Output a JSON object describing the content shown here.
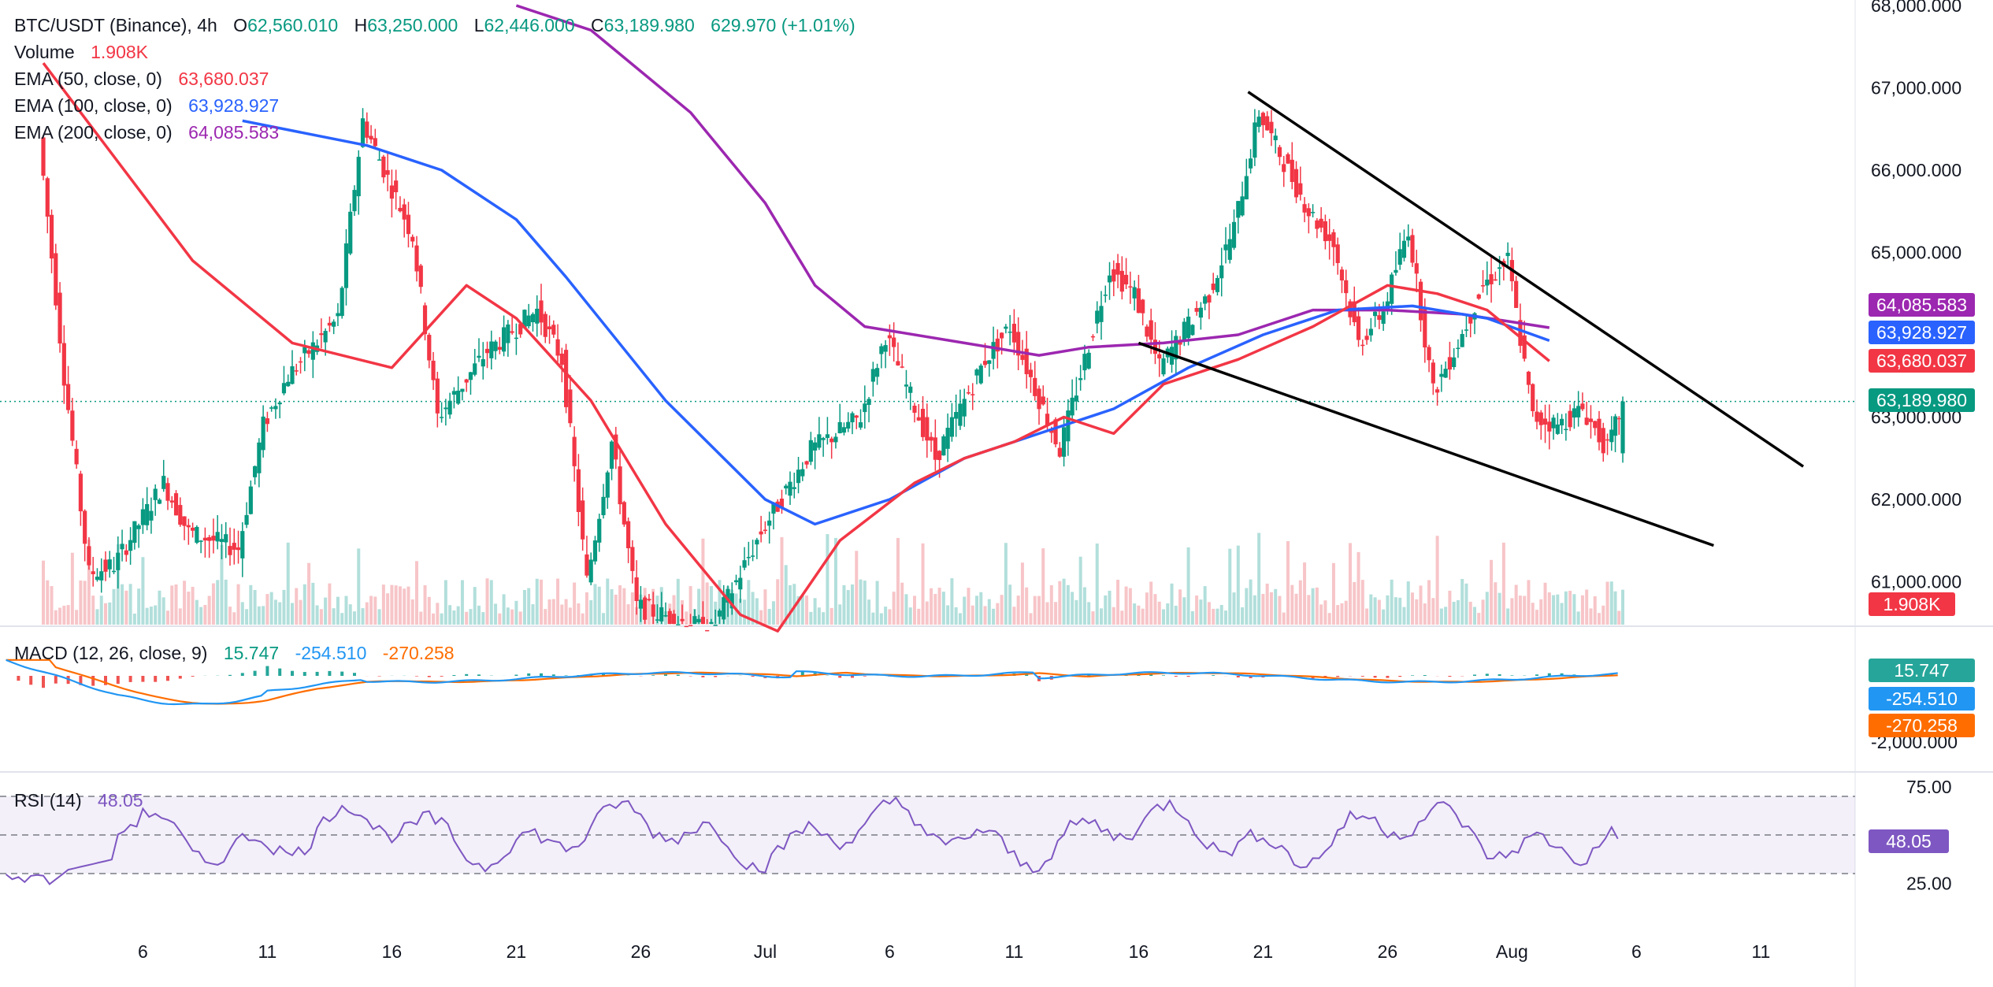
{
  "header": {
    "symbol": "BTC/USDT (Binance), 4h",
    "ohlc": [
      {
        "key": "O",
        "value": "62,560.010"
      },
      {
        "key": "H",
        "value": "63,250.000"
      },
      {
        "key": "L",
        "value": "62,446.000"
      },
      {
        "key": "C",
        "value": "63,189.980"
      }
    ],
    "change": "629.970 (+1.01%)",
    "volume_label": "Volume",
    "volume_value": "1.908K",
    "ema": [
      {
        "label": "EMA (50, close, 0)",
        "value": "63,680.037",
        "color": "#f23645"
      },
      {
        "label": "EMA (100, close, 0)",
        "value": "63,928.927",
        "color": "#2962ff"
      },
      {
        "label": "EMA (200, close, 0)",
        "value": "64,085.583",
        "color": "#9c27b0"
      }
    ]
  },
  "macd_panel": {
    "label": "MACD (12, 26, close, 9)",
    "hist": "15.747",
    "macd": "-254.510",
    "signal": "-270.258"
  },
  "rsi_panel": {
    "label": "RSI (14)",
    "value": "48.05"
  },
  "price_badges": {
    "ema200": "64,085.583",
    "ema100": "63,928.927",
    "ema50": "63,680.037",
    "close": "63,189.980",
    "volume": "1.908K"
  },
  "macd_badges": {
    "hist": "15.747",
    "macd": "-254.510",
    "signal": "-270.258"
  },
  "rsi_badge": "48.05",
  "colors": {
    "up": "#089981",
    "down": "#f23645",
    "ema50": "#f23645",
    "ema100": "#2962ff",
    "ema200": "#9c27b0",
    "macd": "#2196f3",
    "signal": "#ff6d00",
    "rsi": "#7e57c2"
  },
  "chart_data": {
    "type": "candlestick",
    "price_axis": {
      "ticks": [
        "68,000.000",
        "67,000.000",
        "66,000.000",
        "65,000.000",
        "63,000.000",
        "62,000.000",
        "61,000.000"
      ],
      "range": [
        60900,
        68000
      ]
    },
    "macd_axis": {
      "ticks": [
        "-2,000.000"
      ]
    },
    "rsi_axis": {
      "ticks": [
        "75.00",
        "25.00"
      ],
      "bands": [
        70,
        50,
        30
      ]
    },
    "x_axis": {
      "ticks": [
        "6",
        "11",
        "16",
        "21",
        "26",
        "Jul",
        "6",
        "11",
        "16",
        "21",
        "26",
        "Aug",
        "6",
        "11"
      ]
    },
    "anchors": [
      {
        "date": "Jun 02",
        "close": 66400
      },
      {
        "date": "Jun 03",
        "close": 63500
      },
      {
        "date": "Jun 04",
        "close": 61100
      },
      {
        "date": "Jun 05",
        "close": 61200
      },
      {
        "date": "Jun 07",
        "close": 62200
      },
      {
        "date": "Jun 08",
        "close": 61600
      },
      {
        "date": "Jun 10",
        "close": 61400
      },
      {
        "date": "Jun 11",
        "close": 62900
      },
      {
        "date": "Jun 12",
        "close": 63500
      },
      {
        "date": "Jun 14",
        "close": 64200
      },
      {
        "date": "Jun 15",
        "close": 66600
      },
      {
        "date": "Jun 17",
        "close": 65200
      },
      {
        "date": "Jun 18",
        "close": 63000
      },
      {
        "date": "Jun 20",
        "close": 63800
      },
      {
        "date": "Jun 22",
        "close": 64300
      },
      {
        "date": "Jun 23",
        "close": 63700
      },
      {
        "date": "Jun 24",
        "close": 61000
      },
      {
        "date": "Jun 25",
        "close": 62700
      },
      {
        "date": "Jun 26",
        "close": 60700
      },
      {
        "date": "Jun 29",
        "close": 60400
      },
      {
        "date": "Jul 01",
        "close": 61600
      },
      {
        "date": "Jul 03",
        "close": 62600
      },
      {
        "date": "Jul 05",
        "close": 63000
      },
      {
        "date": "Jul 06",
        "close": 64000
      },
      {
        "date": "Jul 08",
        "close": 62500
      },
      {
        "date": "Jul 10",
        "close": 63700
      },
      {
        "date": "Jul 11",
        "close": 64100
      },
      {
        "date": "Jul 13",
        "close": 62600
      },
      {
        "date": "Jul 15",
        "close": 64800
      },
      {
        "date": "Jul 16",
        "close": 64500
      },
      {
        "date": "Jul 17",
        "close": 63600
      },
      {
        "date": "Jul 19",
        "close": 64500
      },
      {
        "date": "Jul 20",
        "close": 65300
      },
      {
        "date": "Jul 21",
        "close": 66700
      },
      {
        "date": "Jul 22",
        "close": 66100
      },
      {
        "date": "Jul 23",
        "close": 65500
      },
      {
        "date": "Jul 24",
        "close": 65100
      },
      {
        "date": "Jul 25",
        "close": 63900
      },
      {
        "date": "Jul 26",
        "close": 64300
      },
      {
        "date": "Jul 27",
        "close": 65300
      },
      {
        "date": "Jul 28",
        "close": 63300
      },
      {
        "date": "Jul 29",
        "close": 63900
      },
      {
        "date": "Jul 30",
        "close": 64600
      },
      {
        "date": "Jul 31",
        "close": 64900
      },
      {
        "date": "Aug 01",
        "close": 63000
      },
      {
        "date": "Aug 02",
        "close": 62900
      },
      {
        "date": "Aug 03",
        "close": 63100
      },
      {
        "date": "Aug 04",
        "close": 62600
      },
      {
        "date": "Aug 04",
        "close": 63190
      }
    ],
    "ema50": [
      [
        0,
        67300
      ],
      [
        6,
        64900
      ],
      [
        10,
        63900
      ],
      [
        14,
        63600
      ],
      [
        17,
        64600
      ],
      [
        19,
        64200
      ],
      [
        22,
        63200
      ],
      [
        25,
        61700
      ],
      [
        28,
        60600
      ],
      [
        29.5,
        60400
      ],
      [
        32,
        61500
      ],
      [
        35,
        62200
      ],
      [
        37,
        62500
      ],
      [
        39,
        62700
      ],
      [
        41,
        63000
      ],
      [
        43,
        62800
      ],
      [
        45,
        63400
      ],
      [
        48,
        63700
      ],
      [
        51,
        64100
      ],
      [
        54,
        64600
      ],
      [
        56,
        64500
      ],
      [
        58,
        64300
      ],
      [
        60.5,
        63680
      ]
    ],
    "ema100": [
      [
        8,
        66600
      ],
      [
        13,
        66300
      ],
      [
        16,
        66000
      ],
      [
        19,
        65400
      ],
      [
        21,
        64700
      ],
      [
        25,
        63200
      ],
      [
        29,
        62000
      ],
      [
        31,
        61700
      ],
      [
        34,
        62000
      ],
      [
        37,
        62500
      ],
      [
        40,
        62800
      ],
      [
        43,
        63100
      ],
      [
        46,
        63600
      ],
      [
        49,
        64000
      ],
      [
        52,
        64300
      ],
      [
        55,
        64350
      ],
      [
        58,
        64200
      ],
      [
        60.5,
        63929
      ]
    ],
    "ema200": [
      [
        19,
        68000
      ],
      [
        22,
        67700
      ],
      [
        26,
        66700
      ],
      [
        29,
        65600
      ],
      [
        31,
        64600
      ],
      [
        33,
        64100
      ],
      [
        37,
        63900
      ],
      [
        40,
        63750
      ],
      [
        42,
        63850
      ],
      [
        45,
        63900
      ],
      [
        48,
        64000
      ],
      [
        51,
        64300
      ],
      [
        54,
        64300
      ],
      [
        57,
        64250
      ],
      [
        60.5,
        64086
      ]
    ],
    "trendlines": [
      {
        "name": "upper",
        "from": {
          "x": 48.4,
          "price": 66950
        },
        "to": {
          "x": 70.7,
          "price": 62400
        }
      },
      {
        "name": "lower",
        "from": {
          "x": 44.0,
          "price": 63900
        },
        "to": {
          "x": 67.1,
          "price": 61440
        }
      }
    ],
    "last_close": 63189.98,
    "macd": {
      "histogram": 15.747,
      "macd": -254.51,
      "signal": -270.258
    },
    "rsi": 48.05
  }
}
